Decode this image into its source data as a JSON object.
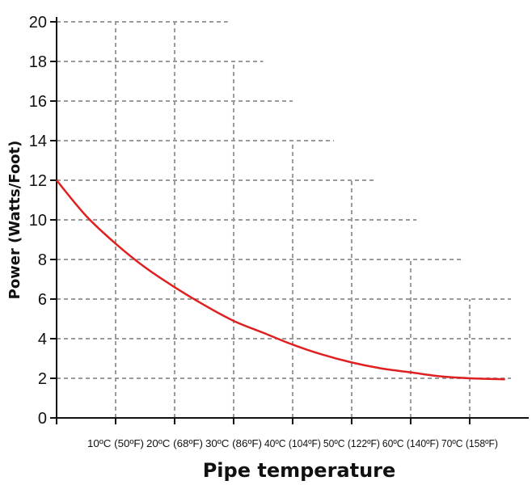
{
  "chart_data": {
    "type": "line",
    "xlabel": "Pipe temperature",
    "ylabel": "Power (Watts/Foot)",
    "y_ticks": [
      "0",
      "2",
      "4",
      "6",
      "8",
      "10",
      "12",
      "14",
      "16",
      "18",
      "20"
    ],
    "x_tick_labels": [
      "10ºC (50ºF)",
      "20ºC (68ºF)",
      "30ºC (86ºF)",
      "40ºC (104ºF)",
      "50ºC (122ºF)",
      "60ºC (140ºF)",
      "70ºC (158ºF)"
    ],
    "x_tick_values": [
      10,
      20,
      30,
      40,
      50,
      60,
      70
    ],
    "xlim": [
      0,
      77
    ],
    "ylim": [
      0,
      20
    ],
    "grid": true,
    "grid_style": "dashed",
    "series": [
      {
        "color": "#e02020",
        "x": [
          0,
          5,
          10,
          15,
          20,
          25,
          30,
          35,
          40,
          45,
          50,
          55,
          60,
          65,
          70,
          76
        ],
        "y": [
          12.0,
          10.2,
          8.8,
          7.6,
          6.6,
          5.7,
          4.9,
          4.3,
          3.7,
          3.2,
          2.8,
          2.5,
          2.3,
          2.1,
          2.0,
          1.95
        ]
      }
    ],
    "grid_right_extent": [
      {
        "y": 20,
        "x": 29
      },
      {
        "y": 18,
        "x": 35
      },
      {
        "y": 16,
        "x": 40
      },
      {
        "y": 14,
        "x": 47
      },
      {
        "y": 12,
        "x": 54
      },
      {
        "y": 10,
        "x": 61
      },
      {
        "y": 8,
        "x": 69
      },
      {
        "y": 6,
        "x": 77
      },
      {
        "y": 4,
        "x": 77
      },
      {
        "y": 2,
        "x": 77
      }
    ],
    "grid_top_extent": [
      {
        "x": 10,
        "y": 20
      },
      {
        "x": 20,
        "y": 20
      },
      {
        "x": 30,
        "y": 18
      },
      {
        "x": 40,
        "y": 14
      },
      {
        "x": 50,
        "y": 12
      },
      {
        "x": 60,
        "y": 8
      },
      {
        "x": 70,
        "y": 6
      }
    ]
  }
}
